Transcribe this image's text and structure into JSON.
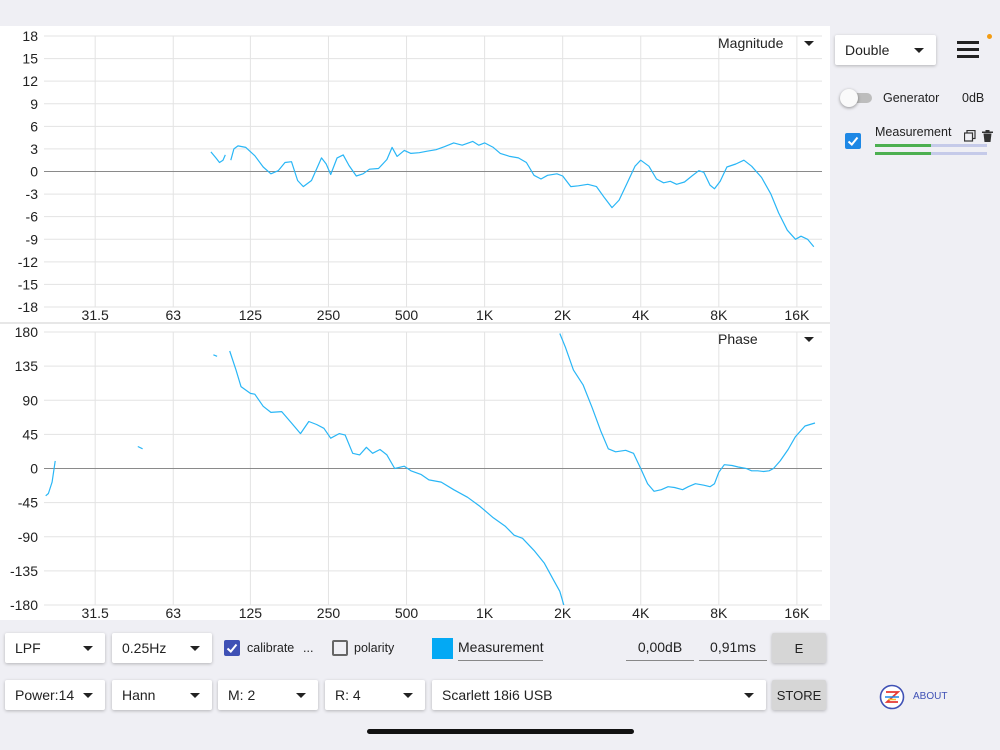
{
  "charts": {
    "magnitude_selector": "Magnitude",
    "phase_selector": "Phase"
  },
  "chart_data": [
    {
      "type": "line",
      "title": "",
      "selector_label": "Magnitude",
      "x_scale": "log",
      "xlim": [
        20,
        20000
      ],
      "x_ticks": [
        "31.5",
        "63",
        "125",
        "250",
        "500",
        "1K",
        "2K",
        "4K",
        "8K",
        "16K"
      ],
      "x_tick_values": [
        31.5,
        63,
        125,
        250,
        500,
        1000,
        2000,
        4000,
        8000,
        16000
      ],
      "ylim": [
        -18,
        18
      ],
      "y_ticks": [
        "18",
        "15",
        "12",
        "9",
        "6",
        "3",
        "0",
        "-3",
        "-6",
        "-9",
        "-12",
        "-15",
        "-18"
      ],
      "y_tick_values": [
        18,
        15,
        12,
        9,
        6,
        3,
        0,
        -3,
        -6,
        -9,
        -12,
        -15,
        -18
      ],
      "grid": true,
      "series": [
        {
          "color": "#29b6f6",
          "segments": [
            [
              [
                88,
                2.6
              ],
              [
                92,
                1.8
              ],
              [
                95,
                1.2
              ],
              [
                98,
                1.5
              ],
              [
                100,
                2.2
              ]
            ],
            [
              [
                105,
                1.5
              ],
              [
                108,
                3.0
              ],
              [
                112,
                3.4
              ],
              [
                120,
                3.2
              ],
              [
                130,
                2.1
              ],
              [
                140,
                0.6
              ],
              [
                150,
                -0.3
              ],
              [
                160,
                0.1
              ],
              [
                170,
                1.2
              ],
              [
                180,
                1.3
              ],
              [
                190,
                -1.2
              ],
              [
                200,
                -2.0
              ],
              [
                215,
                -1.2
              ],
              [
                235,
                1.8
              ],
              [
                245,
                1.0
              ],
              [
                255,
                -0.4
              ],
              [
                270,
                1.8
              ],
              [
                285,
                2.2
              ],
              [
                300,
                0.8
              ],
              [
                320,
                -0.6
              ],
              [
                340,
                -0.3
              ],
              [
                360,
                0.3
              ],
              [
                390,
                0.4
              ],
              [
                420,
                1.6
              ],
              [
                440,
                3.2
              ],
              [
                460,
                2.0
              ],
              [
                490,
                2.8
              ],
              [
                520,
                2.4
              ],
              [
                560,
                2.5
              ],
              [
                600,
                2.7
              ],
              [
                650,
                2.9
              ],
              [
                700,
                3.3
              ],
              [
                760,
                3.8
              ],
              [
                820,
                3.5
              ],
              [
                900,
                4.0
              ],
              [
                950,
                3.5
              ],
              [
                1000,
                3.8
              ],
              [
                1080,
                3.2
              ],
              [
                1150,
                2.4
              ],
              [
                1250,
                2.0
              ],
              [
                1350,
                1.8
              ],
              [
                1450,
                1.2
              ],
              [
                1550,
                -0.5
              ],
              [
                1650,
                -1.0
              ],
              [
                1750,
                -0.5
              ],
              [
                1900,
                -0.3
              ],
              [
                2000,
                -0.6
              ],
              [
                2150,
                -2.0
              ],
              [
                2300,
                -1.9
              ],
              [
                2500,
                -1.7
              ],
              [
                2700,
                -2.0
              ],
              [
                2900,
                -3.5
              ],
              [
                3100,
                -4.8
              ],
              [
                3300,
                -3.8
              ],
              [
                3550,
                -1.5
              ],
              [
                3800,
                0.7
              ],
              [
                4000,
                1.5
              ],
              [
                4300,
                0.7
              ],
              [
                4600,
                -1.0
              ],
              [
                4900,
                -1.5
              ],
              [
                5200,
                -1.3
              ],
              [
                5500,
                -1.7
              ],
              [
                5900,
                -1.4
              ],
              [
                6300,
                -0.6
              ],
              [
                6700,
                0.1
              ],
              [
                7000,
                -0.1
              ],
              [
                7400,
                -1.8
              ],
              [
                7700,
                -2.3
              ],
              [
                8100,
                -1.3
              ],
              [
                8600,
                0.6
              ],
              [
                9300,
                1.0
              ],
              [
                10000,
                1.5
              ],
              [
                10700,
                0.7
              ],
              [
                11700,
                -0.8
              ],
              [
                12700,
                -3.0
              ],
              [
                13600,
                -5.5
              ],
              [
                14700,
                -7.8
              ],
              [
                15800,
                -9.0
              ],
              [
                16600,
                -8.6
              ],
              [
                17600,
                -9.0
              ],
              [
                18600,
                -10.0
              ]
            ]
          ]
        }
      ]
    },
    {
      "type": "line",
      "title": "",
      "selector_label": "Phase",
      "x_scale": "log",
      "xlim": [
        20,
        20000
      ],
      "x_ticks": [
        "31.5",
        "63",
        "125",
        "250",
        "500",
        "1K",
        "2K",
        "4K",
        "8K",
        "16K"
      ],
      "x_tick_values": [
        31.5,
        63,
        125,
        250,
        500,
        1000,
        2000,
        4000,
        8000,
        16000
      ],
      "ylim": [
        -180,
        180
      ],
      "y_ticks": [
        "180",
        "135",
        "90",
        "45",
        "0",
        "-45",
        "-90",
        "-135",
        "-180"
      ],
      "y_tick_values": [
        180,
        135,
        90,
        45,
        0,
        -45,
        -90,
        -135,
        -180
      ],
      "grid": true,
      "series": [
        {
          "color": "#29b6f6",
          "segments": [
            [
              [
                20.3,
                -36
              ],
              [
                20.8,
                -33
              ],
              [
                21.5,
                -18
              ],
              [
                22.1,
                10
              ]
            ],
            [
              [
                46,
                29
              ],
              [
                48,
                26
              ]
            ],
            [
              [
                90,
                150
              ],
              [
                93,
                148
              ]
            ],
            [
              [
                104,
                155
              ],
              [
                110,
                130
              ],
              [
                115,
                108
              ],
              [
                125,
                99
              ],
              [
                130,
                98
              ],
              [
                140,
                82
              ],
              [
                150,
                74
              ],
              [
                165,
                75
              ],
              [
                180,
                60
              ],
              [
                195,
                46
              ],
              [
                210,
                62
              ],
              [
                225,
                58
              ],
              [
                240,
                53
              ],
              [
                255,
                40
              ],
              [
                275,
                46
              ],
              [
                290,
                44
              ],
              [
                310,
                20
              ],
              [
                330,
                18
              ],
              [
                350,
                28
              ],
              [
                370,
                20
              ],
              [
                395,
                25
              ],
              [
                420,
                18
              ],
              [
                450,
                0
              ],
              [
                490,
                3
              ],
              [
                520,
                -3
              ],
              [
                570,
                -8
              ],
              [
                610,
                -15
              ],
              [
                680,
                -18
              ],
              [
                760,
                -28
              ],
              [
                860,
                -38
              ],
              [
                960,
                -50
              ],
              [
                1080,
                -65
              ],
              [
                1200,
                -76
              ],
              [
                1300,
                -88
              ],
              [
                1400,
                -92
              ],
              [
                1550,
                -108
              ],
              [
                1700,
                -125
              ],
              [
                1850,
                -148
              ],
              [
                1950,
                -162
              ],
              [
                2020,
                -180
              ]
            ],
            [
              [
                1950,
                178
              ],
              [
                2050,
                160
              ],
              [
                2200,
                130
              ],
              [
                2400,
                110
              ],
              [
                2600,
                80
              ],
              [
                2800,
                50
              ],
              [
                3000,
                26
              ],
              [
                3200,
                22
              ],
              [
                3500,
                24
              ],
              [
                3750,
                20
              ],
              [
                4000,
                0
              ],
              [
                4250,
                -20
              ],
              [
                4500,
                -30
              ],
              [
                4800,
                -28
              ],
              [
                5100,
                -24
              ],
              [
                5400,
                -25
              ],
              [
                5800,
                -28
              ],
              [
                6100,
                -24
              ],
              [
                6500,
                -20
              ],
              [
                7000,
                -22
              ],
              [
                7400,
                -24
              ],
              [
                7700,
                -20
              ],
              [
                8000,
                -5
              ],
              [
                8400,
                5
              ],
              [
                9000,
                4
              ],
              [
                9500,
                2
              ],
              [
                10200,
                0
              ],
              [
                10700,
                -3
              ],
              [
                11300,
                -3
              ],
              [
                11900,
                -4
              ],
              [
                12500,
                -3
              ],
              [
                13000,
                0
              ],
              [
                13800,
                10
              ],
              [
                14800,
                25
              ],
              [
                15800,
                42
              ],
              [
                17200,
                56
              ],
              [
                18800,
                60
              ]
            ]
          ]
        }
      ]
    }
  ],
  "sidebar": {
    "mode_select": "Double",
    "menu_icon": "hamburger-icon",
    "generator_label": "Generator",
    "generator_level": "0dB",
    "generator_on": false,
    "measurement_label": "Measurement",
    "measurement_checked": true,
    "copy_icon": "copy-icon",
    "delete_icon": "trash-icon",
    "level_bar_1": 0.5,
    "level_bar_2": 0.5,
    "about_label": "ABOUT",
    "accent_color": "#f39c12"
  },
  "toolbar": {
    "filter_select": "LPF",
    "freq_select": "0.25Hz",
    "calibrate_label": "calibrate",
    "calibrate_checked": true,
    "calibrate_more": "...",
    "polarity_label": "polarity",
    "polarity_checked": false,
    "trace_color": "#03a9f4",
    "trace_name": "Measurement",
    "gain_value": "0,00dB",
    "delay_value": "0,91ms",
    "e_button": "E",
    "power_select": "Power:14",
    "window_select": "Hann",
    "m_select": "M: 2",
    "r_select": "R: 4",
    "device_select": "Scarlett 18i6 USB",
    "store_button": "STORE"
  }
}
